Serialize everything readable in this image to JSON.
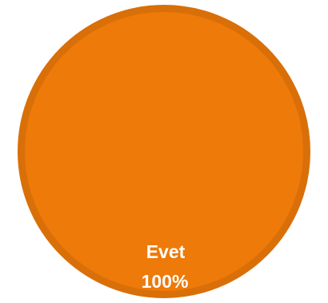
{
  "chart_data": {
    "type": "pie",
    "categories": [
      "Evet"
    ],
    "values": [
      100
    ],
    "data_labels": [
      {
        "category": "Evet",
        "percent": "100%"
      }
    ],
    "colors": {
      "slice_fill": "#EE7A09",
      "slice_border": "#D96F08"
    },
    "legend": "none"
  }
}
